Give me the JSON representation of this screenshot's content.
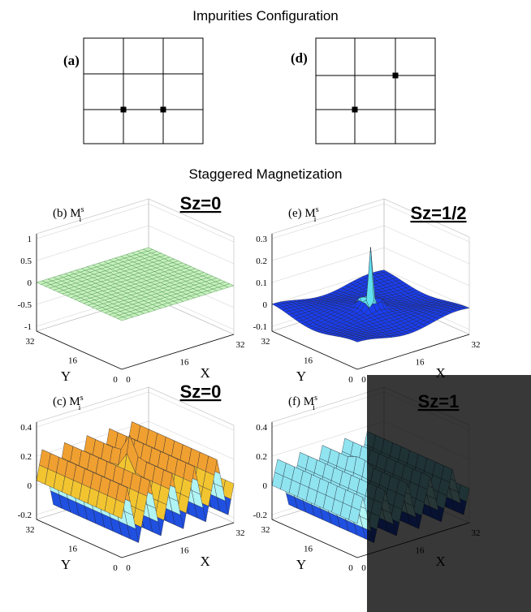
{
  "header": {
    "title": "Impurities Configuration"
  },
  "configs": [
    {
      "label": "(a)"
    },
    {
      "label": "(d)"
    }
  ],
  "section_title": "Staggered Magnetization",
  "plots": [
    {
      "label": "(b) M",
      "sup": "s",
      "sub": "i",
      "annotation": "Sz=0",
      "zticks": [
        "1",
        "0.5",
        "0",
        "-0.5",
        "-1"
      ],
      "xticks": [
        "0",
        "16",
        "32"
      ],
      "yticks": [
        "0",
        "16",
        "32"
      ],
      "xlabel": "X",
      "ylabel": "Y"
    },
    {
      "label": "(e) M",
      "sup": "s",
      "sub": "i",
      "annotation": "Sz=1/2",
      "zticks": [
        "0.3",
        "0.2",
        "0.1",
        "0",
        "-0.1"
      ],
      "xticks": [
        "0",
        "16",
        "32"
      ],
      "yticks": [
        "0",
        "16",
        "32"
      ],
      "xlabel": "X",
      "ylabel": "Y"
    },
    {
      "label": "(c) M",
      "sup": "s",
      "sub": "i",
      "annotation": "Sz=0",
      "zticks": [
        "0.4",
        "0.2",
        "0",
        "-0.2"
      ],
      "xticks": [
        "0",
        "16",
        "32"
      ],
      "yticks": [
        "0",
        "16",
        "32"
      ],
      "xlabel": "X",
      "ylabel": "Y"
    },
    {
      "label": "(f) M",
      "sup": "s",
      "sub": "i",
      "annotation": "Sz=1",
      "zticks": [
        "0.4",
        "0.2",
        "0",
        "-0.2"
      ],
      "xticks": [
        "0",
        "16",
        "32"
      ],
      "yticks": [
        "0",
        "16",
        "32"
      ],
      "xlabel": "X",
      "ylabel": "Y"
    }
  ]
}
